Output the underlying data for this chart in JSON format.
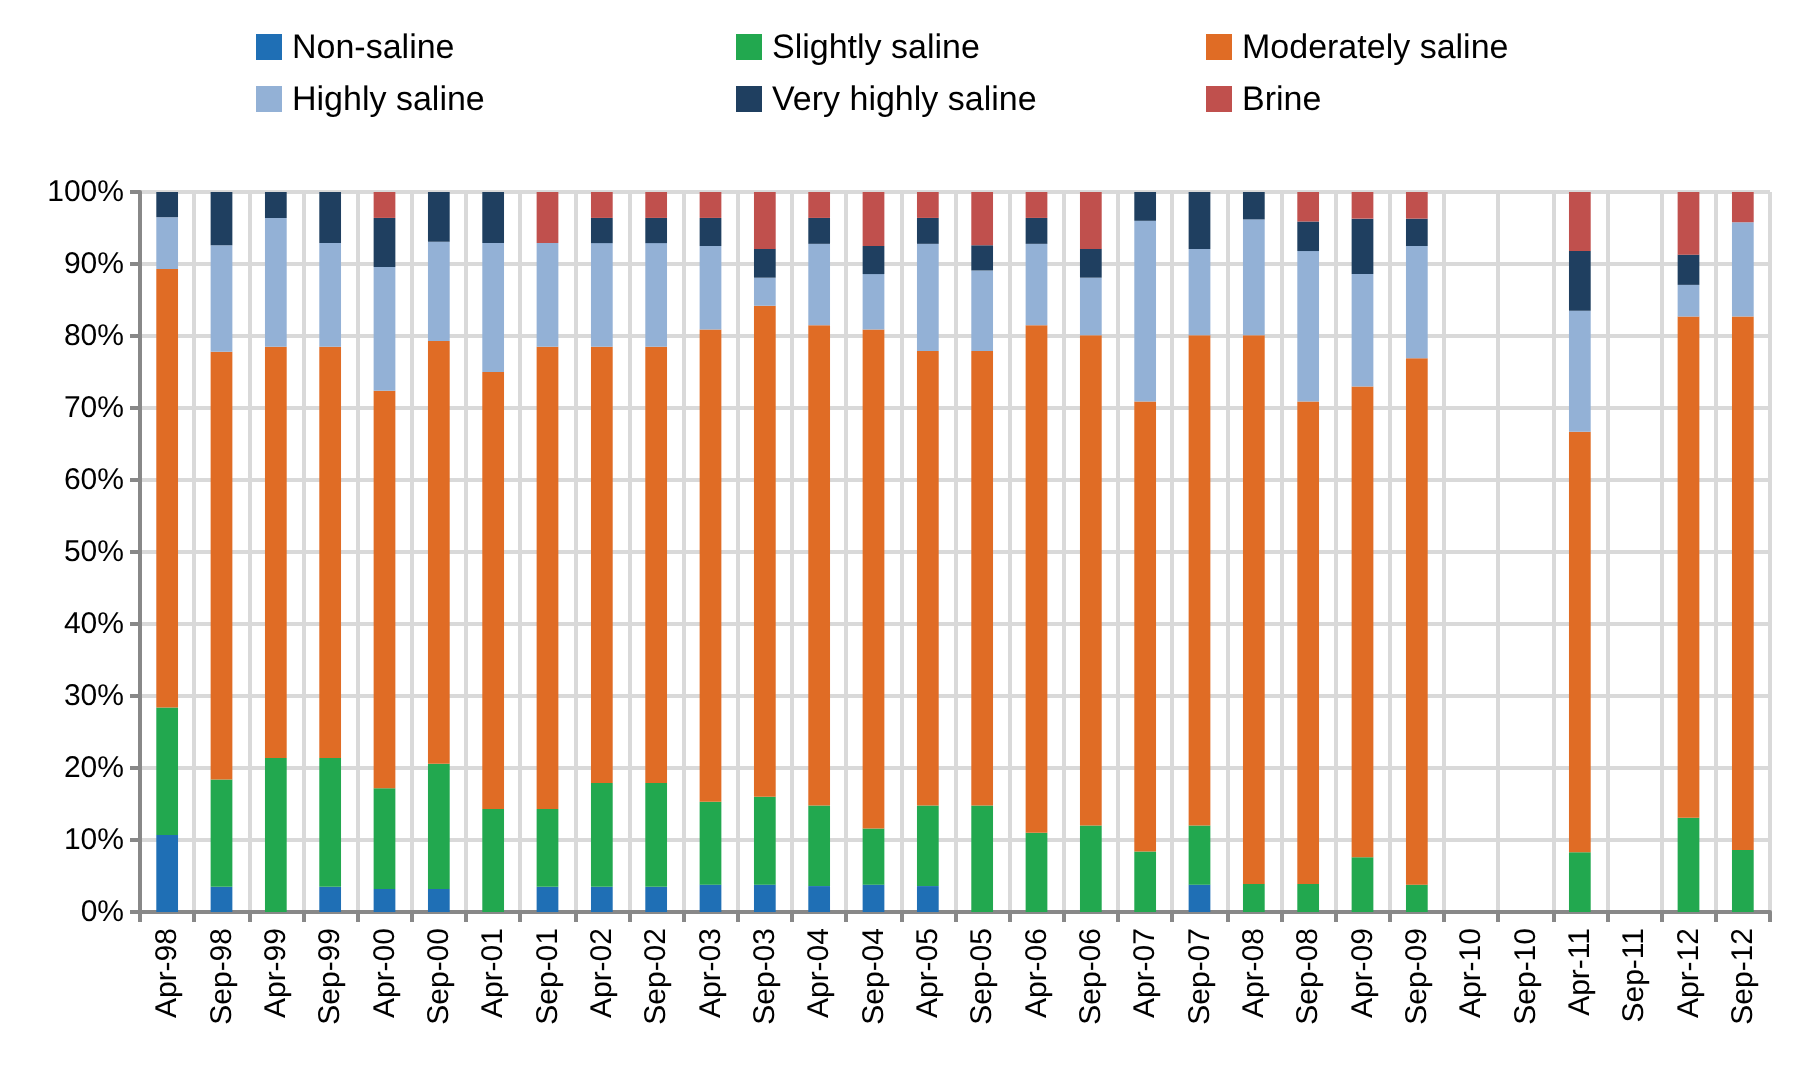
{
  "chart_data": {
    "type": "bar",
    "stacked": true,
    "grid": true,
    "legend": "top",
    "categories": [
      "Apr-98",
      "Sep-98",
      "Apr-99",
      "Sep-99",
      "Apr-00",
      "Sep-00",
      "Apr-01",
      "Sep-01",
      "Apr-02",
      "Sep-02",
      "Apr-03",
      "Sep-03",
      "Apr-04",
      "Sep-04",
      "Apr-05",
      "Sep-05",
      "Apr-06",
      "Sep-06",
      "Apr-07",
      "Sep-07",
      "Apr-08",
      "Sep-08",
      "Apr-09",
      "Sep-09",
      "Apr-10",
      "Sep-10",
      "Apr-11",
      "Sep-11",
      "Apr-12",
      "Sep-12"
    ],
    "ylim": [
      0,
      100
    ],
    "yticks": [
      {
        "value": 0,
        "label": "0%"
      },
      {
        "value": 10,
        "label": "10%"
      },
      {
        "value": 20,
        "label": "20%"
      },
      {
        "value": 30,
        "label": "30%"
      },
      {
        "value": 40,
        "label": "40%"
      },
      {
        "value": 50,
        "label": "50%"
      },
      {
        "value": 60,
        "label": "60%"
      },
      {
        "value": 70,
        "label": "70%"
      },
      {
        "value": 80,
        "label": "80%"
      },
      {
        "value": 90,
        "label": "90%"
      },
      {
        "value": 100,
        "label": "100%"
      }
    ],
    "series": [
      {
        "name": "Non-saline",
        "color": "#1f6fb5",
        "values": [
          10.7,
          3.5,
          0,
          3.5,
          3.2,
          3.2,
          0,
          3.5,
          3.5,
          3.5,
          3.8,
          3.8,
          3.6,
          3.8,
          3.6,
          0,
          0,
          0,
          0,
          3.8,
          0,
          0,
          0,
          0,
          null,
          null,
          0,
          null,
          0,
          0
        ]
      },
      {
        "name": "Slightly saline",
        "color": "#22a84f",
        "values": [
          17.7,
          14.9,
          21.4,
          17.9,
          14.0,
          17.4,
          14.3,
          10.8,
          14.4,
          14.4,
          11.5,
          12.2,
          11.2,
          7.8,
          11.2,
          14.8,
          11.0,
          12.0,
          8.4,
          8.2,
          3.9,
          3.9,
          7.6,
          3.8,
          null,
          null,
          8.3,
          null,
          13.1,
          8.6
        ]
      },
      {
        "name": "Moderately saline",
        "color": "#e06c25",
        "values": [
          60.9,
          59.4,
          57.1,
          57.1,
          55.2,
          58.7,
          60.7,
          64.2,
          60.6,
          60.6,
          65.6,
          68.2,
          66.7,
          69.3,
          63.1,
          63.1,
          70.5,
          68.1,
          62.5,
          68.1,
          76.2,
          67.0,
          65.4,
          73.1,
          null,
          null,
          58.4,
          null,
          69.6,
          74.1
        ]
      },
      {
        "name": "Highly saline",
        "color": "#93b1d6",
        "values": [
          7.2,
          14.8,
          17.9,
          14.4,
          17.2,
          13.8,
          17.9,
          14.4,
          14.4,
          14.4,
          11.6,
          3.9,
          11.3,
          7.7,
          14.9,
          11.2,
          11.3,
          8.0,
          25.1,
          12.0,
          16.1,
          20.9,
          15.6,
          15.6,
          null,
          null,
          16.8,
          null,
          4.4,
          13.1
        ]
      },
      {
        "name": "Very highly saline",
        "color": "#1f3f60",
        "values": [
          3.5,
          7.4,
          3.6,
          7.1,
          6.8,
          6.9,
          7.1,
          0,
          3.5,
          3.5,
          3.9,
          4.0,
          3.6,
          3.9,
          3.6,
          3.5,
          3.6,
          4.0,
          4.0,
          7.9,
          3.8,
          4.1,
          7.7,
          3.8,
          null,
          null,
          8.3,
          null,
          4.2,
          0
        ]
      },
      {
        "name": "Brine",
        "color": "#c0504d",
        "values": [
          0,
          0,
          0,
          0,
          3.6,
          0,
          0,
          7.1,
          3.6,
          3.6,
          3.6,
          7.9,
          3.6,
          7.5,
          3.6,
          7.4,
          3.6,
          7.9,
          0,
          0,
          0,
          4.1,
          3.7,
          3.7,
          null,
          null,
          8.2,
          null,
          8.7,
          4.2
        ]
      }
    ]
  }
}
